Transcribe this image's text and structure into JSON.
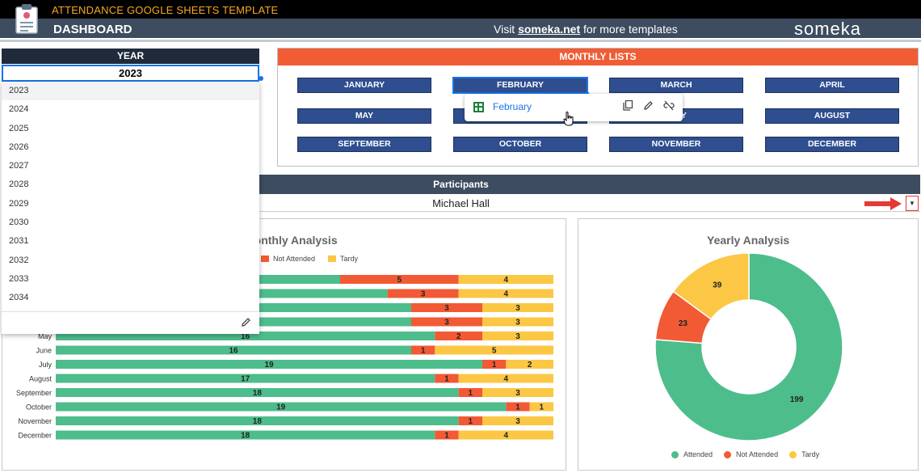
{
  "header": {
    "app_title": "ATTENDANCE GOOGLE SHEETS TEMPLATE",
    "dashboard_title": "DASHBOARD",
    "visit_prefix": "Visit",
    "visit_link": "someka.net",
    "visit_suffix": "for more templates",
    "brand": "someka"
  },
  "year": {
    "label": "YEAR",
    "value": "2023",
    "options": [
      "2023",
      "2024",
      "2025",
      "2026",
      "2027",
      "2028",
      "2029",
      "2030",
      "2031",
      "2032",
      "2033",
      "2034"
    ]
  },
  "monthly_lists": {
    "title": "MONTHLY LISTS",
    "months": [
      "JANUARY",
      "FEBRUARY",
      "MARCH",
      "APRIL",
      "MAY",
      "JUNE",
      "JULY",
      "AUGUST",
      "SEPTEMBER",
      "OCTOBER",
      "NOVEMBER",
      "DECEMBER"
    ],
    "active_month": "FEBRUARY"
  },
  "link_popup": {
    "label": "February",
    "icons": [
      "copy-icon",
      "edit-icon",
      "unlink-icon"
    ]
  },
  "participants": {
    "label": "Participants",
    "value": "Michael Hall"
  },
  "colors": {
    "attended": "#4dbd8b",
    "not_attended": "#f15a35",
    "tardy": "#fbc744",
    "header_dark": "#3d4c5e",
    "accent_orange": "#f6a823"
  },
  "chart_data": [
    {
      "type": "bar",
      "orientation": "horizontal-stacked",
      "title": "Monthly Analysis",
      "legend": [
        "Not Attended",
        "Tardy"
      ],
      "categories": [
        "May",
        "June",
        "July",
        "August",
        "September",
        "October",
        "November",
        "December"
      ],
      "series": [
        {
          "name": "Attended",
          "values": [
            16,
            16,
            19,
            17,
            18,
            19,
            18,
            18
          ]
        },
        {
          "name": "Not Attended",
          "values": [
            2,
            1,
            1,
            1,
            1,
            1,
            1,
            1
          ]
        },
        {
          "name": "Tardy",
          "values": [
            3,
            5,
            2,
            4,
            3,
            1,
            3,
            4
          ]
        }
      ],
      "partial_rows": [
        {
          "not_attended": 5,
          "tardy": 4
        },
        {
          "not_attended": 3,
          "tardy": 4
        },
        {
          "not_attended": 3,
          "tardy": 3
        },
        {
          "not_attended": 3,
          "tardy": 3
        }
      ]
    },
    {
      "type": "pie",
      "style": "donut",
      "title": "Yearly Analysis",
      "labels": [
        "Attended",
        "Not Attended",
        "Tardy"
      ],
      "values": [
        199,
        23,
        39
      ]
    }
  ]
}
